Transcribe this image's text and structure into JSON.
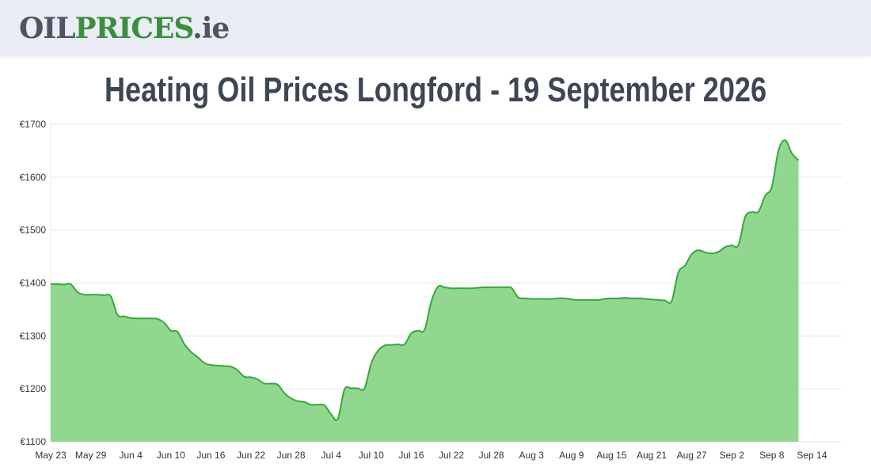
{
  "logo": {
    "part1": "OIL",
    "part2": "PRICES",
    "part3": ".ie"
  },
  "colors": {
    "line": "#3aa63a",
    "fill": "#91d790",
    "grid": "#e6e6e6",
    "header_bg": "#eaedf5",
    "title": "#3e4654"
  },
  "chart_data": {
    "type": "area",
    "title": "Heating Oil Prices Longford - 19 September 2026",
    "xlabel": "",
    "ylabel": "",
    "ylim": [
      1100,
      1700
    ],
    "y_ticks": [
      "€1700",
      "€1600",
      "€1500",
      "€1400",
      "€1300",
      "€1200",
      "€1100"
    ],
    "y_tick_values": [
      1700,
      1600,
      1500,
      1400,
      1300,
      1200,
      1100
    ],
    "x_ticks": [
      "May 23",
      "May 29",
      "Jun 4",
      "Jun 10",
      "Jun 16",
      "Jun 22",
      "Jun 28",
      "Jul 4",
      "Jul 10",
      "Jul 16",
      "Jul 22",
      "Jul 28",
      "Aug 3",
      "Aug 9",
      "Aug 15",
      "Aug 21",
      "Aug 27",
      "Sep 2",
      "Sep 8",
      "Sep 14"
    ],
    "grid": true,
    "legend": "none",
    "series": [
      {
        "points": [
          [
            "2026-05-23",
            1398
          ],
          [
            "2026-05-24",
            1398
          ],
          [
            "2026-05-25",
            1397
          ],
          [
            "2026-05-26",
            1398
          ],
          [
            "2026-05-27",
            1383
          ],
          [
            "2026-05-28",
            1378
          ],
          [
            "2026-05-29",
            1378
          ],
          [
            "2026-05-30",
            1378
          ],
          [
            "2026-05-31",
            1377
          ],
          [
            "2026-06-01",
            1375
          ],
          [
            "2026-06-02",
            1340
          ],
          [
            "2026-06-03",
            1337
          ],
          [
            "2026-06-04",
            1334
          ],
          [
            "2026-06-05",
            1333
          ],
          [
            "2026-06-06",
            1333
          ],
          [
            "2026-06-07",
            1333
          ],
          [
            "2026-06-08",
            1332
          ],
          [
            "2026-06-09",
            1325
          ],
          [
            "2026-06-10",
            1310
          ],
          [
            "2026-06-11",
            1308
          ],
          [
            "2026-06-12",
            1285
          ],
          [
            "2026-06-13",
            1270
          ],
          [
            "2026-06-14",
            1260
          ],
          [
            "2026-06-15",
            1249
          ],
          [
            "2026-06-16",
            1245
          ],
          [
            "2026-06-17",
            1244
          ],
          [
            "2026-06-18",
            1243
          ],
          [
            "2026-06-19",
            1242
          ],
          [
            "2026-06-20",
            1235
          ],
          [
            "2026-06-21",
            1223
          ],
          [
            "2026-06-22",
            1222
          ],
          [
            "2026-06-23",
            1218
          ],
          [
            "2026-06-24",
            1210
          ],
          [
            "2026-06-25",
            1210
          ],
          [
            "2026-06-26",
            1208
          ],
          [
            "2026-06-27",
            1192
          ],
          [
            "2026-06-28",
            1182
          ],
          [
            "2026-06-29",
            1177
          ],
          [
            "2026-06-30",
            1175
          ],
          [
            "2026-07-01",
            1170
          ],
          [
            "2026-07-02",
            1170
          ],
          [
            "2026-07-03",
            1169
          ],
          [
            "2026-07-04",
            1152
          ],
          [
            "2026-07-05",
            1143
          ],
          [
            "2026-07-06",
            1199
          ],
          [
            "2026-07-07",
            1201
          ],
          [
            "2026-07-08",
            1201
          ],
          [
            "2026-07-09",
            1201
          ],
          [
            "2026-07-10",
            1248
          ],
          [
            "2026-07-11",
            1272
          ],
          [
            "2026-07-12",
            1282
          ],
          [
            "2026-07-13",
            1283
          ],
          [
            "2026-07-14",
            1284
          ],
          [
            "2026-07-15",
            1284
          ],
          [
            "2026-07-16",
            1305
          ],
          [
            "2026-07-17",
            1310
          ],
          [
            "2026-07-18",
            1312
          ],
          [
            "2026-07-19",
            1365
          ],
          [
            "2026-07-20",
            1393
          ],
          [
            "2026-07-21",
            1392
          ],
          [
            "2026-07-22",
            1390
          ],
          [
            "2026-07-23",
            1390
          ],
          [
            "2026-07-24",
            1390
          ],
          [
            "2026-07-25",
            1390
          ],
          [
            "2026-07-26",
            1391
          ],
          [
            "2026-07-27",
            1392
          ],
          [
            "2026-07-28",
            1392
          ],
          [
            "2026-07-29",
            1392
          ],
          [
            "2026-07-30",
            1392
          ],
          [
            "2026-07-31",
            1391
          ],
          [
            "2026-08-01",
            1373
          ],
          [
            "2026-08-02",
            1371
          ],
          [
            "2026-08-03",
            1370
          ],
          [
            "2026-08-04",
            1370
          ],
          [
            "2026-08-05",
            1370
          ],
          [
            "2026-08-06",
            1370
          ],
          [
            "2026-08-07",
            1371
          ],
          [
            "2026-08-08",
            1371
          ],
          [
            "2026-08-09",
            1369
          ],
          [
            "2026-08-10",
            1368
          ],
          [
            "2026-08-11",
            1368
          ],
          [
            "2026-08-12",
            1368
          ],
          [
            "2026-08-13",
            1368
          ],
          [
            "2026-08-14",
            1370
          ],
          [
            "2026-08-15",
            1371
          ],
          [
            "2026-08-16",
            1371
          ],
          [
            "2026-08-17",
            1372
          ],
          [
            "2026-08-18",
            1371
          ],
          [
            "2026-08-19",
            1371
          ],
          [
            "2026-08-20",
            1370
          ],
          [
            "2026-08-21",
            1369
          ],
          [
            "2026-08-22",
            1368
          ],
          [
            "2026-08-23",
            1367
          ],
          [
            "2026-08-24",
            1366
          ],
          [
            "2026-08-25",
            1420
          ],
          [
            "2026-08-26",
            1433
          ],
          [
            "2026-08-27",
            1455
          ],
          [
            "2026-08-28",
            1462
          ],
          [
            "2026-08-29",
            1458
          ],
          [
            "2026-08-30",
            1456
          ],
          [
            "2026-08-31",
            1459
          ],
          [
            "2026-09-01",
            1468
          ],
          [
            "2026-09-02",
            1471
          ],
          [
            "2026-09-03",
            1472
          ],
          [
            "2026-09-04",
            1525
          ],
          [
            "2026-09-05",
            1534
          ],
          [
            "2026-09-06",
            1535
          ],
          [
            "2026-09-07",
            1565
          ],
          [
            "2026-09-08",
            1582
          ],
          [
            "2026-09-09",
            1651
          ],
          [
            "2026-09-10",
            1670
          ],
          [
            "2026-09-11",
            1645
          ],
          [
            "2026-09-12",
            1632
          ]
        ]
      }
    ]
  }
}
